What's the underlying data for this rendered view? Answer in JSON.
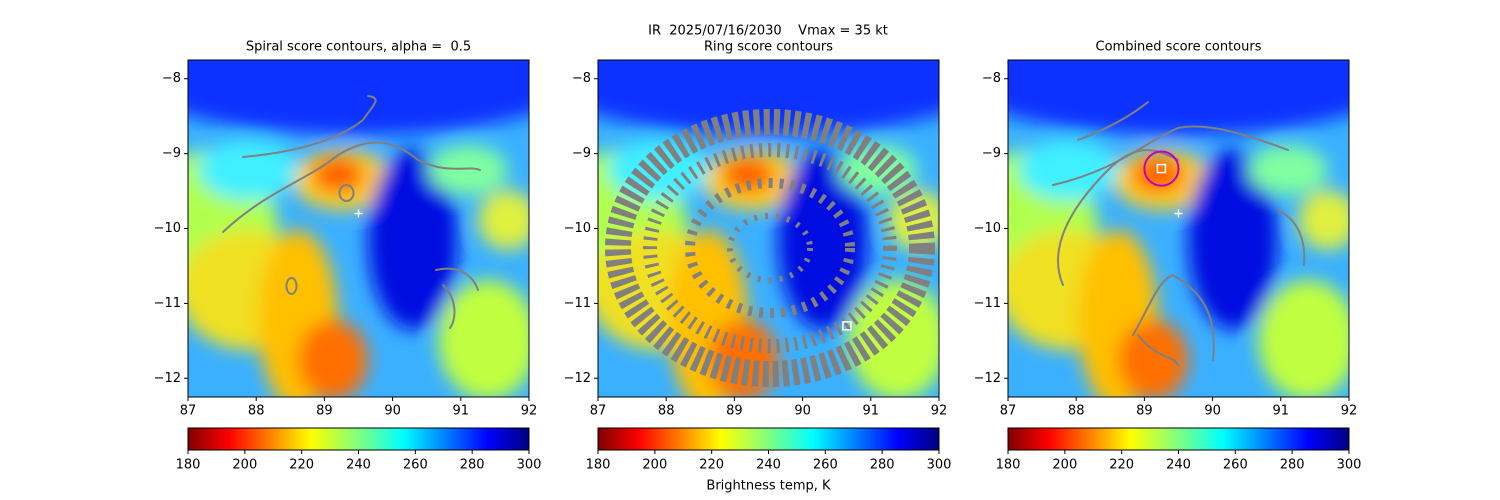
{
  "suptitle": "IR  2025/07/16/2030    Vmax = 35 kt",
  "chart_data": [
    {
      "type": "image",
      "title": "Spiral score contours, alpha =  0.5",
      "xlim": [
        87,
        92
      ],
      "ylim": [
        -12.25,
        -7.75
      ],
      "xticks": [
        87,
        88,
        89,
        90,
        91,
        92
      ],
      "yticks": [
        {
          "value": -8,
          "label": "−8"
        },
        {
          "value": -9,
          "label": "−9"
        },
        {
          "value": -10,
          "label": "−10"
        },
        {
          "value": -11,
          "label": "−11"
        },
        {
          "value": -12,
          "label": "−12"
        }
      ],
      "center_marker": {
        "x": 89.5,
        "y": -9.8
      },
      "colorbar": {
        "cmap": "jet_r",
        "lim": [
          180,
          300
        ],
        "ticks": [
          180,
          200,
          220,
          240,
          260,
          280,
          300
        ]
      }
    },
    {
      "type": "image",
      "title": "Ring score contours",
      "xlim": [
        87,
        92
      ],
      "ylim": [
        -12.25,
        -7.75
      ],
      "xticks": [
        87,
        88,
        89,
        90,
        91,
        92
      ],
      "yticks": [
        {
          "value": -8,
          "label": "−8"
        },
        {
          "value": -9,
          "label": "−9"
        },
        {
          "value": -10,
          "label": "−10"
        },
        {
          "value": -11,
          "label": "−11"
        },
        {
          "value": -12,
          "label": "−12"
        }
      ],
      "best_marker": {
        "x": 90.65,
        "y": -11.3
      },
      "colorbar": {
        "cmap": "jet_r",
        "lim": [
          180,
          300
        ],
        "ticks": [
          180,
          200,
          220,
          240,
          260,
          280,
          300
        ],
        "label": "Brightness temp, K"
      }
    },
    {
      "type": "image",
      "title": "Combined score contours",
      "xlim": [
        87,
        92
      ],
      "ylim": [
        -12.25,
        -7.75
      ],
      "xticks": [
        87,
        88,
        89,
        90,
        91,
        92
      ],
      "yticks": [
        {
          "value": -8,
          "label": "−8"
        },
        {
          "value": -9,
          "label": "−9"
        },
        {
          "value": -10,
          "label": "−10"
        },
        {
          "value": -11,
          "label": "−11"
        },
        {
          "value": -12,
          "label": "−12"
        }
      ],
      "center_marker": {
        "x": 89.5,
        "y": -9.8
      },
      "best_marker": {
        "x": 89.25,
        "y": -9.2,
        "radius": 0.25,
        "color": "#c000c0"
      },
      "colorbar": {
        "cmap": "jet_r",
        "lim": [
          180,
          300
        ],
        "ticks": [
          180,
          200,
          220,
          240,
          260,
          280,
          300
        ]
      }
    }
  ]
}
